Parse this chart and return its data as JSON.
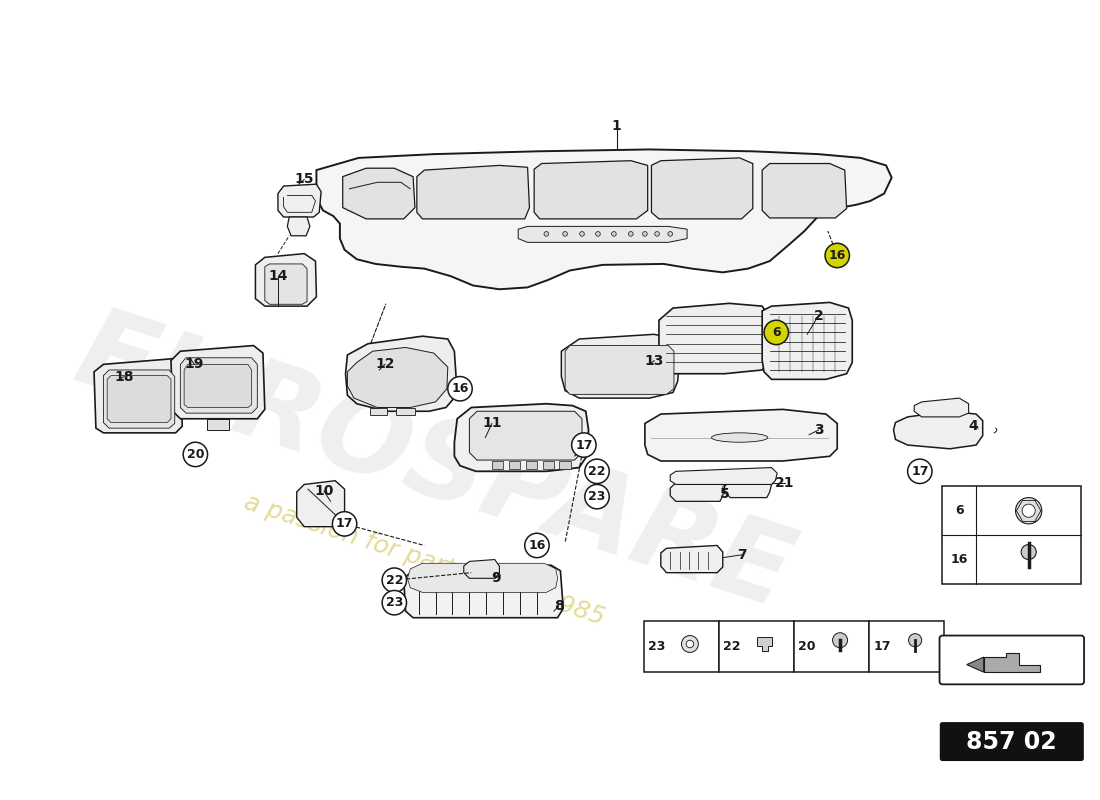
{
  "bg_color": "#ffffff",
  "line_color": "#1a1a1a",
  "part_number": "857 02",
  "watermark1": "EUROSPARE",
  "watermark2": "a passion for parts since 1985",
  "plain_labels": [
    [
      585,
      108,
      "1"
    ],
    [
      800,
      310,
      "2"
    ],
    [
      800,
      432,
      "3"
    ],
    [
      965,
      428,
      "4"
    ],
    [
      700,
      500,
      "5"
    ],
    [
      718,
      565,
      "7"
    ],
    [
      523,
      620,
      "8"
    ],
    [
      456,
      590,
      "9"
    ],
    [
      273,
      497,
      "10"
    ],
    [
      452,
      425,
      "11"
    ],
    [
      338,
      362,
      "12"
    ],
    [
      625,
      358,
      "13"
    ],
    [
      224,
      268,
      "14"
    ],
    [
      252,
      165,
      "15"
    ],
    [
      60,
      375,
      "18"
    ],
    [
      135,
      362,
      "19"
    ],
    [
      764,
      488,
      "21"
    ]
  ],
  "circle_labels": [
    [
      820,
      246,
      "16",
      true
    ],
    [
      755,
      328,
      "6",
      true
    ],
    [
      418,
      388,
      "16",
      false
    ],
    [
      500,
      555,
      "16",
      false
    ],
    [
      550,
      448,
      "17",
      false
    ],
    [
      564,
      476,
      "22",
      false
    ],
    [
      564,
      503,
      "23",
      false
    ],
    [
      295,
      532,
      "17",
      false
    ],
    [
      348,
      592,
      "22",
      false
    ],
    [
      348,
      616,
      "23",
      false
    ],
    [
      136,
      458,
      "20",
      false
    ],
    [
      908,
      476,
      "17",
      false
    ]
  ]
}
